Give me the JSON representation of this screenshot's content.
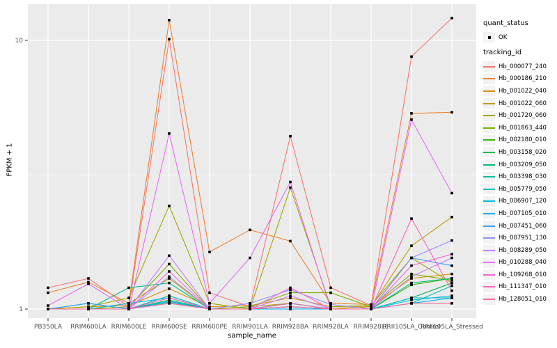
{
  "axes": {
    "x_title": "sample_name",
    "y_title": "FPKM + 1",
    "y_tick_labels": [
      "1",
      "10"
    ]
  },
  "legend": {
    "quant_status_title": "quant_status",
    "quant_status_items": [
      {
        "label": "OK"
      }
    ],
    "tracking_id_title": "tracking_id"
  },
  "colors": {
    "panel_bg": "#EBEBEB",
    "grid": "#FFFFFF",
    "axis_text": "#4D4D4D",
    "tick_mark": "#333333",
    "point": "#000000"
  },
  "chart_data": {
    "type": "line",
    "title": "",
    "xlabel": "sample_name",
    "ylabel": "FPKM + 1",
    "y_scale": "log10",
    "ylim": [
      1,
      14
    ],
    "y_major_ticks": [
      1,
      10
    ],
    "y_minor_ticks": [
      3.162
    ],
    "grid": true,
    "legend_position": "right",
    "quant_status": "OK",
    "point_shape": "small-black-square",
    "categories": [
      "PB350LA",
      "RRIM600LA",
      "RRIM600LE",
      "RRIM600SE",
      "RRIM600PE",
      "RRIM901LA",
      "RRIM928BA",
      "RRIM928LA",
      "RRIM928LE",
      "RRII105LA_Control",
      "RRII105LA_Stressed"
    ],
    "series": [
      {
        "name": "Hb_000077_240",
        "color": "#F8766D",
        "values": [
          1.2,
          1.3,
          1.02,
          10.1,
          1.15,
          1.02,
          4.4,
          1.2,
          1.03,
          8.7,
          12.1
        ]
      },
      {
        "name": "Hb_000186_210",
        "color": "#EA8331",
        "values": [
          1.15,
          1.26,
          1.05,
          11.9,
          1.63,
          1.97,
          1.79,
          1.05,
          1.04,
          5.35,
          5.4
        ]
      },
      {
        "name": "Hb_001022_040",
        "color": "#D89000",
        "values": [
          1.0,
          1.02,
          1.03,
          1.19,
          1.02,
          1.03,
          1.1,
          1.02,
          1.02,
          1.3,
          1.35
        ]
      },
      {
        "name": "Hb_001022_060",
        "color": "#C09B00",
        "values": [
          1.0,
          1.0,
          1.05,
          1.3,
          1.0,
          1.02,
          1.05,
          1.0,
          1.02,
          1.72,
          2.2
        ]
      },
      {
        "name": "Hb_001720_060",
        "color": "#A3A500",
        "values": [
          1.0,
          1.02,
          1.1,
          2.42,
          1.05,
          1.0,
          2.83,
          1.02,
          1.03,
          1.55,
          1.25
        ]
      },
      {
        "name": "Hb_001863_440",
        "color": "#7CAE00",
        "values": [
          1.0,
          1.0,
          1.02,
          1.47,
          1.0,
          1.02,
          1.15,
          1.15,
          1.02,
          1.35,
          1.28
        ]
      },
      {
        "name": "Hb_002180_010",
        "color": "#39B600",
        "values": [
          1.0,
          1.0,
          1.0,
          1.12,
          1.0,
          1.0,
          1.05,
          1.0,
          1.0,
          1.23,
          1.3
        ]
      },
      {
        "name": "Hb_003158_020",
        "color": "#00BB4E",
        "values": [
          1.0,
          1.0,
          1.0,
          1.08,
          1.0,
          1.0,
          1.02,
          1.0,
          1.0,
          1.1,
          1.25
        ]
      },
      {
        "name": "Hb_003209_050",
        "color": "#00BF7D",
        "values": [
          1.0,
          1.0,
          1.2,
          1.25,
          1.0,
          1.0,
          1.05,
          1.0,
          1.0,
          1.25,
          1.3
        ]
      },
      {
        "name": "Hb_003398_030",
        "color": "#00C1A3",
        "values": [
          1.0,
          1.0,
          1.0,
          1.06,
          1.0,
          1.0,
          1.02,
          1.0,
          1.0,
          1.05,
          1.22
        ]
      },
      {
        "name": "Hb_005779_050",
        "color": "#00BFC4",
        "values": [
          1.0,
          1.0,
          1.0,
          1.12,
          1.0,
          1.0,
          1.05,
          1.0,
          1.0,
          1.1,
          1.1
        ]
      },
      {
        "name": "Hb_006907_120",
        "color": "#00BAE0",
        "values": [
          1.0,
          1.0,
          1.05,
          1.1,
          1.0,
          1.0,
          1.02,
          1.0,
          1.0,
          1.08,
          1.12
        ]
      },
      {
        "name": "Hb_007105_010",
        "color": "#00B0F6",
        "values": [
          1.0,
          1.05,
          1.0,
          1.07,
          1.0,
          1.0,
          1.0,
          1.0,
          1.0,
          1.05,
          1.1
        ]
      },
      {
        "name": "Hb_007451_060",
        "color": "#35A2FF",
        "values": [
          1.0,
          1.05,
          1.0,
          1.05,
          1.0,
          1.0,
          1.02,
          1.0,
          1.0,
          1.55,
          1.45
        ]
      },
      {
        "name": "Hb_007951_130",
        "color": "#9590FF",
        "values": [
          1.0,
          1.0,
          1.0,
          1.32,
          1.0,
          1.05,
          1.18,
          1.04,
          1.0,
          1.55,
          1.8
        ]
      },
      {
        "name": "Hb_008289_050",
        "color": "#C77CFF",
        "values": [
          1.0,
          1.0,
          1.0,
          1.58,
          1.0,
          1.0,
          1.12,
          1.0,
          1.0,
          1.32,
          1.55
        ]
      },
      {
        "name": "Hb_010288_040",
        "color": "#E76BF3",
        "values": [
          1.03,
          1.24,
          1.0,
          4.5,
          1.05,
          1.55,
          2.97,
          1.0,
          1.0,
          5.07,
          2.7
        ]
      },
      {
        "name": "Hb_109268_010",
        "color": "#FA62DB",
        "values": [
          1.0,
          1.0,
          1.0,
          1.38,
          1.0,
          1.0,
          1.2,
          1.0,
          1.0,
          1.45,
          1.6
        ]
      },
      {
        "name": "Hb_111347_010",
        "color": "#FF62BC",
        "values": [
          1.0,
          1.0,
          1.0,
          1.1,
          1.0,
          1.0,
          1.05,
          1.0,
          1.0,
          2.17,
          1.17
        ]
      },
      {
        "name": "Hb_128051_010",
        "color": "#FF6A98",
        "values": [
          1.0,
          1.0,
          1.0,
          1.05,
          1.0,
          1.0,
          1.02,
          1.0,
          1.0,
          1.05,
          1.05
        ]
      }
    ]
  }
}
